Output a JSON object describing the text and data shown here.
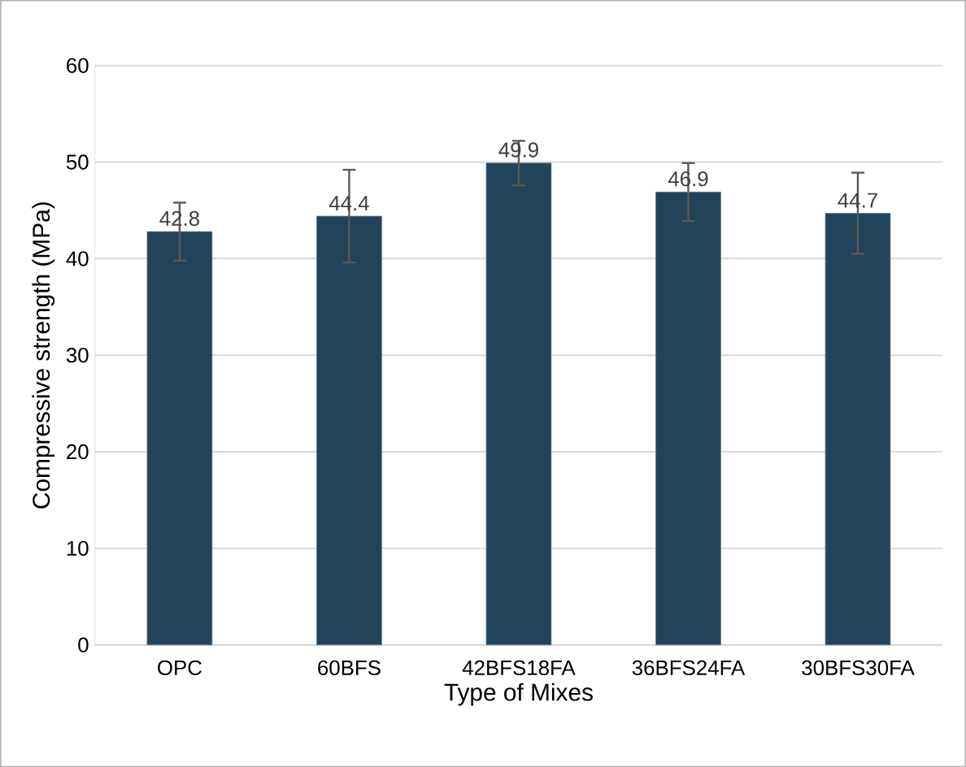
{
  "chart_data": {
    "type": "bar",
    "xlabel": "Type of Mixes",
    "ylabel": "Compressive strength (MPa)",
    "categories": [
      "OPC",
      "60BFS",
      "42BFS18FA",
      "36BFS24FA",
      "30BFS30FA"
    ],
    "values": [
      42.8,
      44.4,
      49.9,
      46.9,
      44.7
    ],
    "errors": [
      3.0,
      4.8,
      2.3,
      3.0,
      4.2
    ],
    "color": "#22445a",
    "ylim": [
      0,
      60
    ],
    "yticks": [
      0,
      10,
      20,
      30,
      40,
      50,
      60
    ],
    "grid": "y",
    "data_labels": true
  }
}
